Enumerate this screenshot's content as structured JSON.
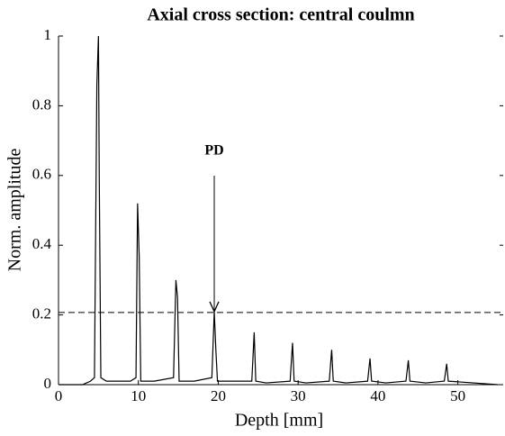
{
  "chart_data": {
    "type": "line",
    "title": "Axial cross section: central coulmn",
    "x_label": "Depth [mm]",
    "y_label": "Norm. amplitude",
    "annotation": "PD",
    "threshold": 0.207,
    "xlim": [
      0,
      55
    ],
    "ylim": [
      0,
      1
    ],
    "xticks": [
      0,
      10,
      20,
      30,
      40,
      50
    ],
    "yticks": [
      0,
      0.2,
      0.4,
      0.6,
      0.8,
      1
    ],
    "series": [
      {
        "color": "#000000",
        "x": [
          0,
          3,
          4,
          4.5,
          4.8,
          5.0,
          5.1,
          5.3,
          6,
          9,
          9.7,
          9.9,
          10.1,
          10.3,
          12,
          14.4,
          14.7,
          14.9,
          15.1,
          17,
          19.2,
          19.5,
          19.7,
          19.9,
          22,
          24.2,
          24.5,
          24.7,
          26,
          29.0,
          29.3,
          29.5,
          31,
          33.9,
          34.2,
          34.4,
          36,
          38.7,
          39.0,
          39.2,
          41,
          43.5,
          43.8,
          44.0,
          46,
          48.3,
          48.6,
          48.8,
          55
        ],
        "values": [
          0,
          0,
          0.01,
          0.02,
          0.86,
          1.0,
          0.6,
          0.02,
          0.01,
          0.01,
          0.02,
          0.52,
          0.37,
          0.01,
          0.01,
          0.02,
          0.3,
          0.25,
          0.01,
          0.01,
          0.02,
          0.21,
          0.1,
          0.01,
          0.01,
          0.01,
          0.15,
          0.01,
          0.005,
          0.01,
          0.12,
          0.01,
          0.005,
          0.01,
          0.1,
          0.01,
          0.005,
          0.01,
          0.075,
          0.01,
          0.005,
          0.01,
          0.07,
          0.01,
          0.005,
          0.01,
          0.06,
          0.01,
          0
        ]
      }
    ]
  }
}
